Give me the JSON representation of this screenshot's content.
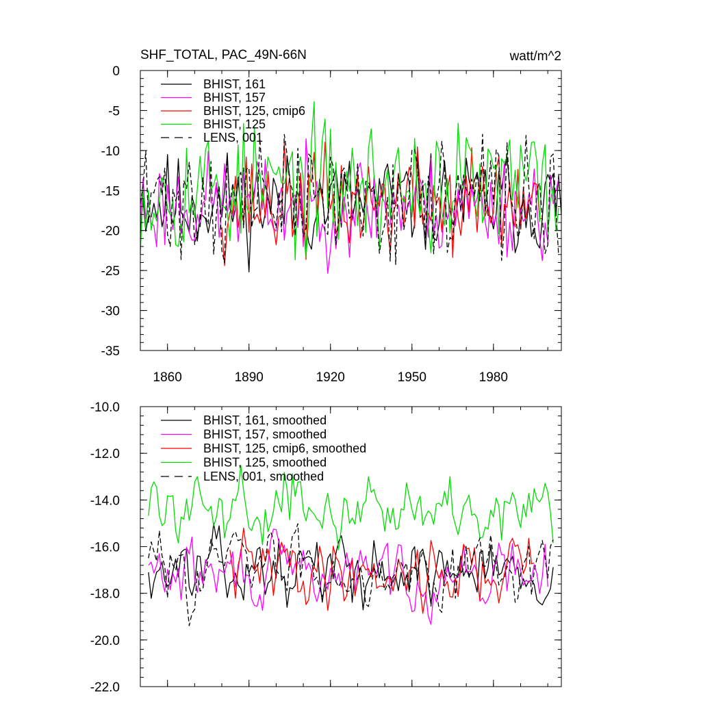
{
  "chart_data": [
    {
      "type": "line",
      "title": "SHF_TOTAL, PAC_49N-66N",
      "units_label": "watt/m^2",
      "xlim": [
        1850,
        2005
      ],
      "ylim": [
        -35,
        0
      ],
      "xticks": [
        1860,
        1890,
        1920,
        1950,
        1980
      ],
      "xtick_labels": [
        "1860",
        "1890",
        "1920",
        "1950",
        "1980"
      ],
      "yticks": [
        0,
        -5,
        -10,
        -15,
        -20,
        -25,
        -30,
        -35
      ],
      "ytick_labels": [
        "0",
        "-5",
        "-10",
        "-15",
        "-20",
        "-25",
        "-30",
        "-35"
      ],
      "legend_position": "top-left",
      "series": [
        {
          "name": "BHIST, 161",
          "color": "#000000",
          "dash": "solid",
          "start_year": 1850,
          "length": 156,
          "mean": -16.5,
          "amplitude": 3.2,
          "seed": 11,
          "ar": 0.1
        },
        {
          "name": "BHIST, 157",
          "color": "#ff00ff",
          "dash": "solid",
          "start_year": 1850,
          "length": 155,
          "mean": -16.8,
          "amplitude": 3.3,
          "seed": 23,
          "ar": 0.1
        },
        {
          "name": "BHIST, 125, cmip6",
          "color": "#ff0000",
          "dash": "solid",
          "start_year": 1880,
          "length": 119,
          "mean": -16.5,
          "amplitude": 3.5,
          "seed": 37,
          "ar": 0.1
        },
        {
          "name": "BHIST, 125",
          "color": "#00dd00",
          "dash": "solid",
          "start_year": 1850,
          "length": 155,
          "mean": -14.5,
          "amplitude": 4.2,
          "seed": 53,
          "ar": 0.1
        },
        {
          "name": "LENS, 001",
          "color": "#000000",
          "dash": "dashed",
          "start_year": 1850,
          "length": 155,
          "mean": -16.0,
          "amplitude": 4.0,
          "seed": 71,
          "ar": 0.1
        }
      ]
    },
    {
      "type": "line",
      "title": "",
      "units_label": "",
      "xlim": [
        1850,
        2005
      ],
      "ylim": [
        -22,
        -10
      ],
      "xticks": [
        1860,
        1890,
        1920,
        1950,
        1980
      ],
      "xtick_labels": [],
      "yticks": [
        -10,
        -12,
        -14,
        -16,
        -18,
        -20,
        -22
      ],
      "ytick_labels": [
        "-10.0",
        "-12.0",
        "-14.0",
        "-16.0",
        "-18.0",
        "-20.0",
        "-22.0"
      ],
      "legend_position": "top-left",
      "series": [
        {
          "name": "BHIST, 161, smoothed",
          "color": "#000000",
          "dash": "solid",
          "start_year": 1853,
          "length": 150,
          "mean": -17.0,
          "amplitude": 0.9,
          "seed": 13,
          "ar": 0.55
        },
        {
          "name": "BHIST, 157, smoothed",
          "color": "#ff00ff",
          "dash": "solid",
          "start_year": 1853,
          "length": 148,
          "mean": -17.2,
          "amplitude": 0.9,
          "seed": 29,
          "ar": 0.55
        },
        {
          "name": "BHIST, 125, cmip6, smoothed",
          "color": "#ff0000",
          "dash": "solid",
          "start_year": 1883,
          "length": 113,
          "mean": -17.0,
          "amplitude": 1.0,
          "seed": 41,
          "ar": 0.55
        },
        {
          "name": "BHIST, 125, smoothed",
          "color": "#00dd00",
          "dash": "solid",
          "start_year": 1853,
          "length": 150,
          "mean": -14.2,
          "amplitude": 0.9,
          "seed": 59,
          "ar": 0.55
        },
        {
          "name": "LENS, 001, smoothed",
          "color": "#000000",
          "dash": "dashed",
          "start_year": 1853,
          "length": 150,
          "mean": -16.8,
          "amplitude": 1.0,
          "seed": 83,
          "ar": 0.55
        }
      ]
    }
  ]
}
